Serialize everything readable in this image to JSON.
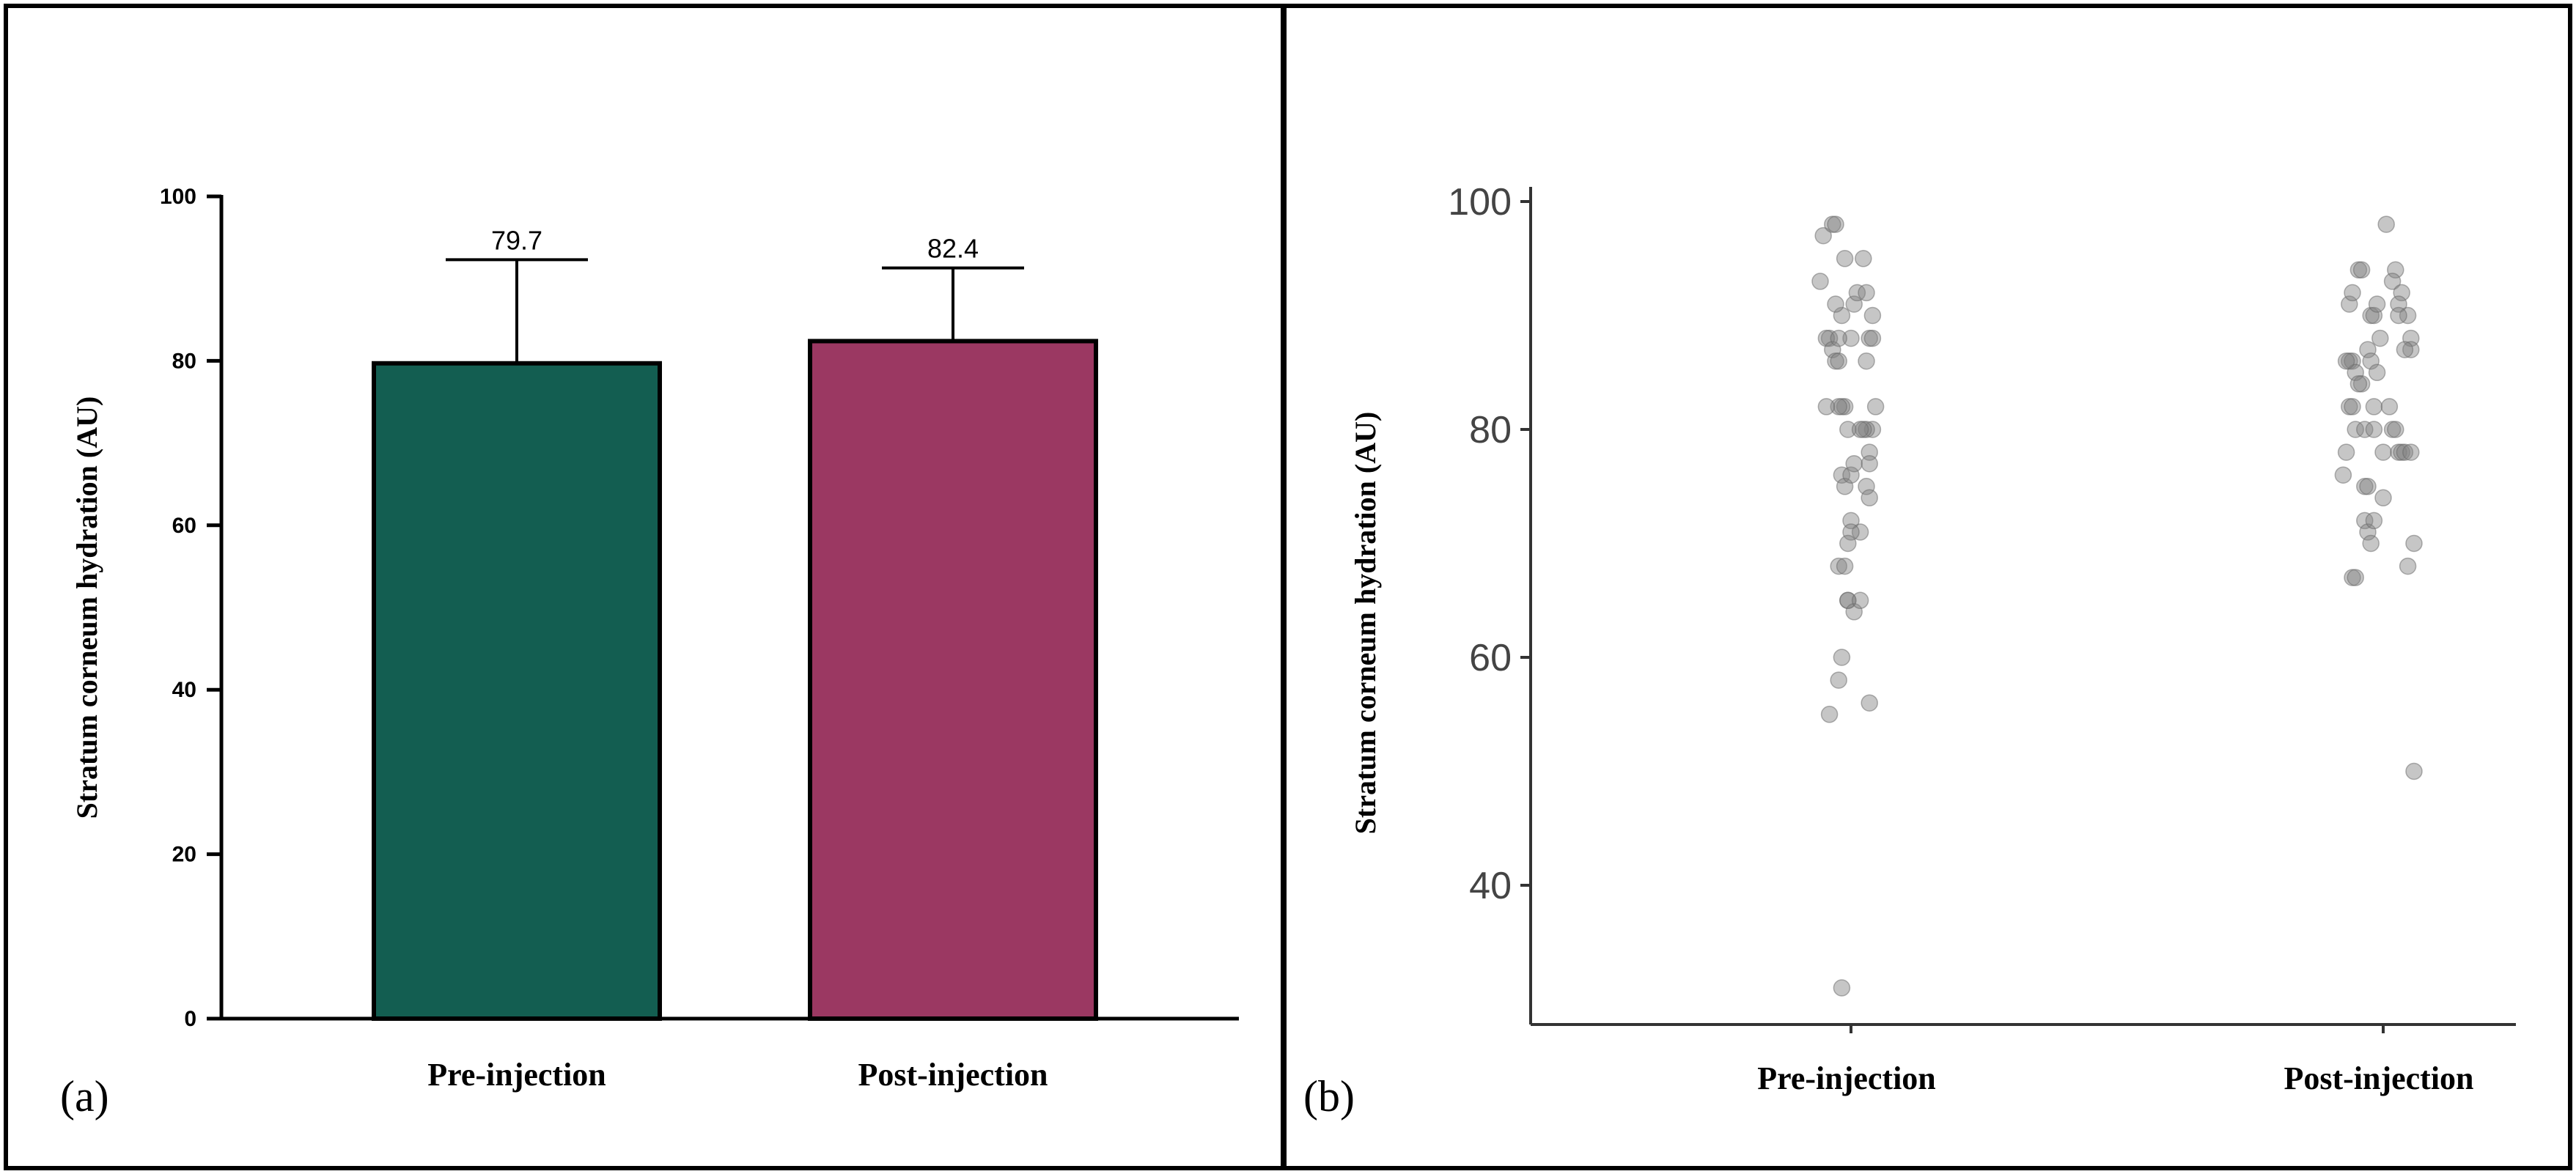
{
  "chart_data": [
    {
      "panel_label": "(a)",
      "type": "bar",
      "categories": [
        "Pre-injection",
        "Post-injection"
      ],
      "values": [
        79.7,
        82.4
      ],
      "error_upper": [
        92.3,
        91.3
      ],
      "value_labels": [
        "79.7",
        "82.4"
      ],
      "ylabel": "Stratum corneum hydration (AU)",
      "ylim": [
        0,
        100
      ],
      "yticks": [
        0,
        20,
        40,
        60,
        80,
        100
      ],
      "ytick_labels": [
        "0",
        "20",
        "40",
        "60",
        "80",
        "100"
      ],
      "colors": [
        "#135e51",
        "#9b3862"
      ]
    },
    {
      "panel_label": "(b)",
      "type": "scatter",
      "categories": [
        "Pre-injection",
        "Post-injection"
      ],
      "ylabel": "Stratum corneum hydration (AU)",
      "ylim": [
        29,
        102
      ],
      "yticks": [
        40,
        60,
        80,
        100
      ],
      "ytick_labels": [
        "40",
        "60",
        "80",
        "100"
      ],
      "point_color": "#808080",
      "series": [
        {
          "name": "Pre-injection",
          "points": [
            [
              -0.09,
              97
            ],
            [
              -0.06,
              98
            ],
            [
              -0.05,
              98
            ],
            [
              -0.07,
              88
            ],
            [
              -0.08,
              88
            ],
            [
              -0.06,
              87
            ],
            [
              -0.05,
              86
            ],
            [
              -0.04,
              86
            ],
            [
              -0.02,
              95
            ],
            [
              -0.03,
              90
            ],
            [
              0.01,
              91
            ],
            [
              0.02,
              92
            ],
            [
              0.05,
              92
            ],
            [
              0.04,
              95
            ],
            [
              0.07,
              90
            ],
            [
              0.06,
              88
            ],
            [
              0.07,
              88
            ],
            [
              0.05,
              86
            ],
            [
              0.08,
              82
            ],
            [
              0.07,
              80
            ],
            [
              0.05,
              80
            ],
            [
              0.04,
              80
            ],
            [
              0.06,
              78
            ],
            [
              0.06,
              77
            ],
            [
              0.05,
              75
            ],
            [
              0.06,
              74
            ],
            [
              0.03,
              71
            ],
            [
              -0.02,
              82
            ],
            [
              -0.03,
              82
            ],
            [
              -0.04,
              82
            ],
            [
              -0.08,
              82
            ],
            [
              -0.01,
              80
            ],
            [
              -0.03,
              76
            ],
            [
              -0.02,
              75
            ],
            [
              0.0,
              76
            ],
            [
              0.01,
              77
            ],
            [
              0.0,
              72
            ],
            [
              0.0,
              71
            ],
            [
              -0.01,
              70
            ],
            [
              -0.04,
              68
            ],
            [
              -0.02,
              68
            ],
            [
              -0.01,
              65
            ],
            [
              -0.01,
              65
            ],
            [
              0.01,
              64
            ],
            [
              0.03,
              65
            ],
            [
              -0.03,
              60
            ],
            [
              -0.04,
              58
            ],
            [
              -0.07,
              55
            ],
            [
              0.06,
              56
            ],
            [
              -0.03,
              31
            ],
            [
              -0.1,
              93
            ],
            [
              -0.05,
              91
            ],
            [
              0.0,
              88
            ],
            [
              -0.04,
              88
            ],
            [
              0.03,
              80
            ]
          ]
        },
        {
          "name": "Post-injection",
          "points": [
            [
              -0.11,
              91
            ],
            [
              -0.1,
              92
            ],
            [
              -0.08,
              94
            ],
            [
              -0.07,
              94
            ],
            [
              -0.04,
              90
            ],
            [
              -0.03,
              90
            ],
            [
              -0.02,
              91
            ],
            [
              0.04,
              94
            ],
            [
              0.03,
              93
            ],
            [
              0.06,
              92
            ],
            [
              0.05,
              91
            ],
            [
              0.08,
              90
            ],
            [
              0.09,
              88
            ],
            [
              0.09,
              87
            ],
            [
              0.07,
              87
            ],
            [
              -0.11,
              86
            ],
            [
              -0.1,
              86
            ],
            [
              -0.09,
              85
            ],
            [
              -0.07,
              84
            ],
            [
              -0.05,
              87
            ],
            [
              -0.04,
              86
            ],
            [
              -0.02,
              85
            ],
            [
              -0.11,
              82
            ],
            [
              -0.1,
              82
            ],
            [
              -0.09,
              80
            ],
            [
              -0.06,
              80
            ],
            [
              -0.03,
              82
            ],
            [
              -0.03,
              80
            ],
            [
              0.0,
              78
            ],
            [
              0.02,
              82
            ],
            [
              0.03,
              80
            ],
            [
              0.04,
              80
            ],
            [
              0.05,
              78
            ],
            [
              0.06,
              78
            ],
            [
              0.07,
              78
            ],
            [
              0.09,
              78
            ],
            [
              -0.12,
              78
            ],
            [
              -0.13,
              76
            ],
            [
              -0.06,
              75
            ],
            [
              -0.05,
              75
            ],
            [
              -0.06,
              72
            ],
            [
              -0.05,
              71
            ],
            [
              -0.04,
              70
            ],
            [
              -0.03,
              72
            ],
            [
              0.0,
              74
            ],
            [
              0.01,
              98
            ],
            [
              -0.1,
              67
            ],
            [
              -0.09,
              67
            ],
            [
              0.08,
              68
            ],
            [
              0.1,
              70
            ],
            [
              0.1,
              50
            ],
            [
              -0.12,
              86
            ],
            [
              -0.08,
              84
            ],
            [
              -0.01,
              88
            ],
            [
              0.05,
              90
            ]
          ]
        }
      ]
    }
  ]
}
